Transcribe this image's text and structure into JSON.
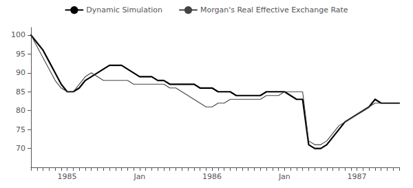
{
  "chart_data": {
    "type": "line",
    "categories": [
      null,
      null,
      null,
      null,
      null,
      null,
      "1985",
      null,
      null,
      null,
      null,
      null,
      null,
      null,
      null,
      null,
      null,
      null,
      "Jan",
      null,
      null,
      null,
      null,
      null,
      null,
      null,
      null,
      null,
      null,
      null,
      "1986",
      null,
      null,
      null,
      null,
      null,
      null,
      null,
      null,
      null,
      null,
      null,
      "Jan",
      null,
      null,
      null,
      null,
      null,
      null,
      null,
      null,
      null,
      null,
      null,
      "1987",
      null,
      null,
      null,
      null,
      null,
      null,
      null
    ],
    "series": [
      {
        "name": "Dynamic Simulation",
        "color": "#000000",
        "values": [
          100,
          98,
          96,
          93,
          90,
          87,
          85,
          85,
          86,
          88,
          89,
          90,
          91,
          92,
          92,
          92,
          91,
          90,
          89,
          89,
          89,
          88,
          88,
          87,
          87,
          87,
          87,
          87,
          86,
          86,
          86,
          85,
          85,
          85,
          84,
          84,
          84,
          84,
          84,
          85,
          85,
          85,
          85,
          84,
          83,
          83,
          71,
          70,
          70,
          71,
          73,
          75,
          77,
          78,
          79,
          80,
          81,
          83,
          82,
          82,
          82,
          82
        ]
      },
      {
        "name": "Morgan's Real Effective Exchange Rate",
        "color": "#444444",
        "values": [
          100,
          97,
          94,
          91,
          88,
          86,
          85,
          85,
          87,
          89,
          90,
          89,
          88,
          88,
          88,
          88,
          88,
          87,
          87,
          87,
          87,
          87,
          87,
          86,
          86,
          85,
          84,
          83,
          82,
          81,
          81,
          82,
          82,
          83,
          83,
          83,
          83,
          83,
          83,
          84,
          84,
          84,
          85,
          85,
          85,
          85,
          72,
          71,
          71,
          72,
          74,
          76,
          77,
          78,
          79,
          80,
          81,
          82,
          82,
          82,
          82,
          82
        ]
      }
    ],
    "ylim": [
      65,
      102
    ],
    "yticks": [
      70,
      75,
      80,
      85,
      90,
      95,
      100
    ],
    "grid": false,
    "legend": "top"
  }
}
